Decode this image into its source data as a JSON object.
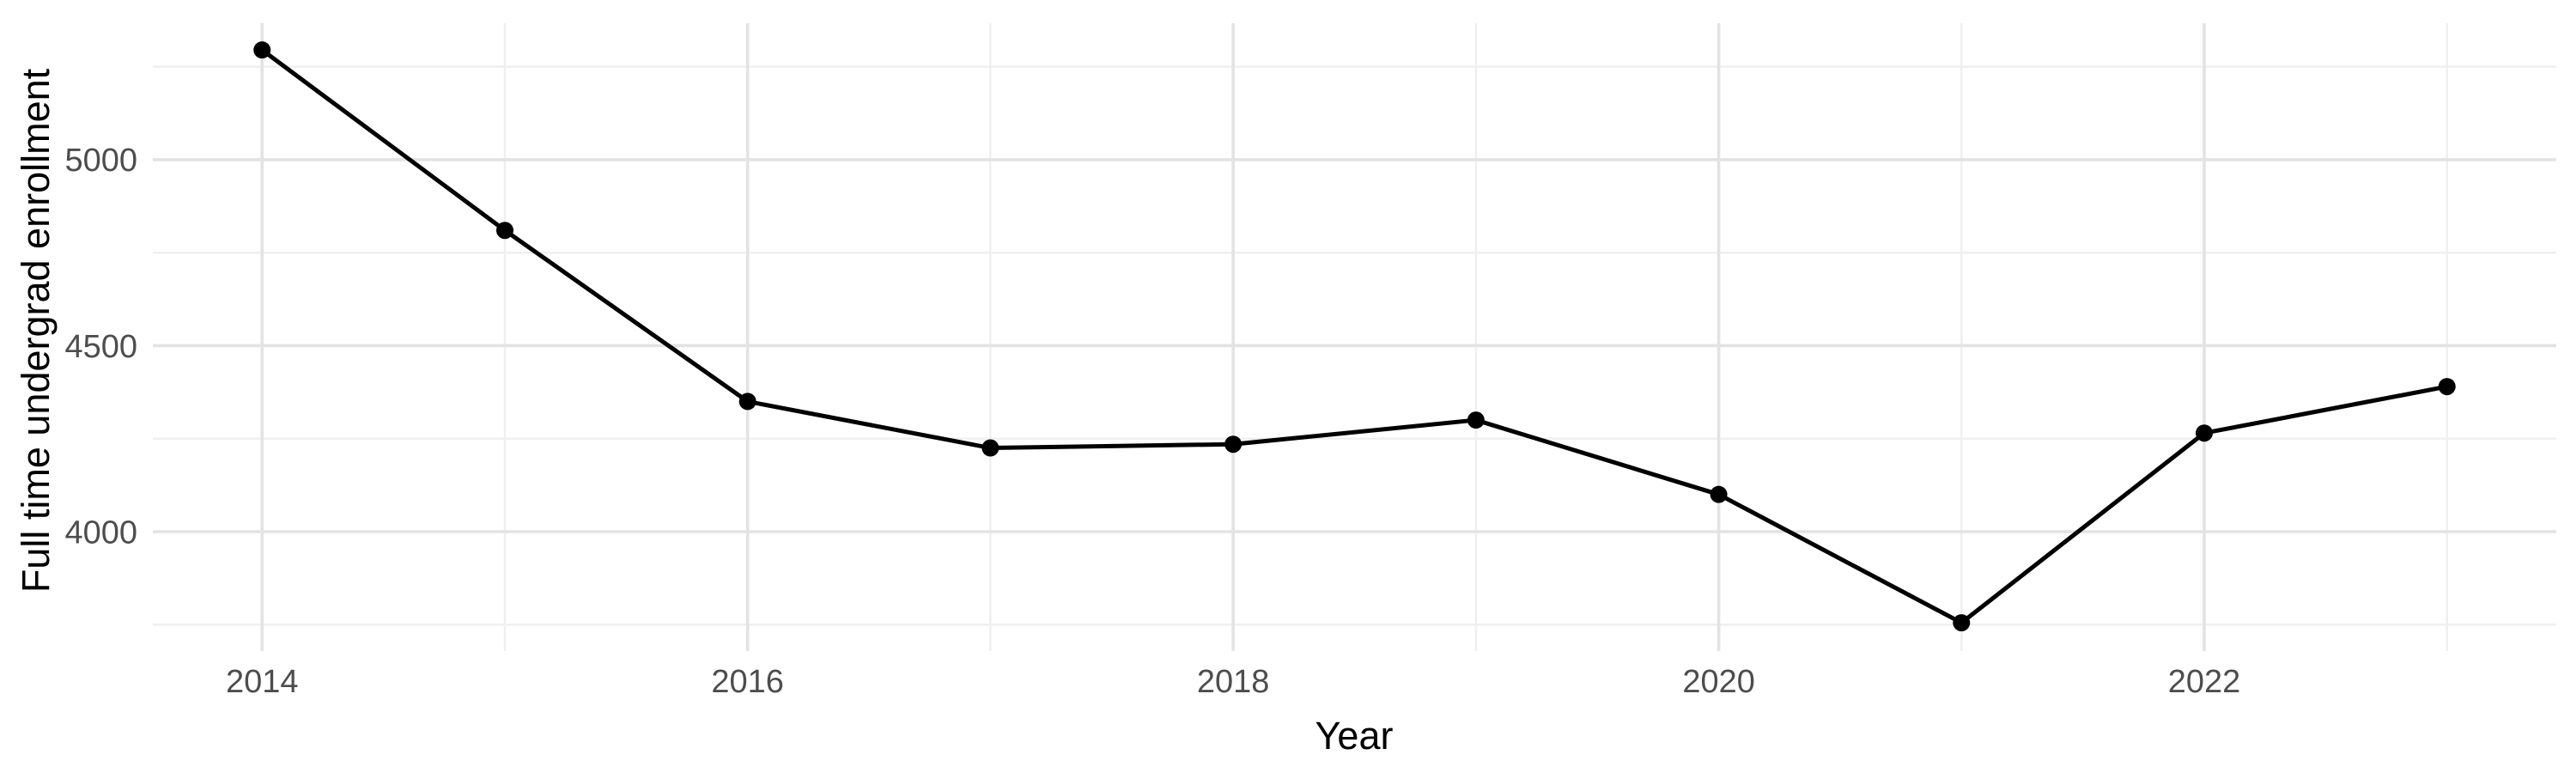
{
  "chart_data": {
    "type": "line",
    "title": "",
    "xlabel": "Year",
    "ylabel": "Full time undergrad enrollment",
    "x": [
      2014,
      2015,
      2016,
      2017,
      2018,
      2019,
      2020,
      2021,
      2022,
      2023
    ],
    "series": [
      {
        "name": "Full time undergrad enrollment",
        "values": [
          5295,
          4810,
          4350,
          4225,
          4235,
          4300,
          4100,
          3755,
          4265,
          4390
        ]
      }
    ],
    "x_ticks": [
      2014,
      2016,
      2018,
      2020,
      2022
    ],
    "x_tick_labels": [
      "2014",
      "2016",
      "2018",
      "2020",
      "2022"
    ],
    "x_minor_gridlines": [
      2015,
      2017,
      2019,
      2021,
      2023
    ],
    "y_ticks": [
      4000,
      4500,
      5000
    ],
    "y_tick_labels": [
      "4000",
      "4500",
      "5000"
    ],
    "y_minor_gridlines": [
      3750,
      4250,
      4750,
      5250
    ],
    "xlim": [
      2013.55,
      2023.45
    ],
    "ylim": [
      3679,
      5367
    ],
    "grid": true,
    "legend_position": "none",
    "colors": {
      "line": "#000000",
      "point": "#000000",
      "grid_major": "#e3e3e3",
      "grid_minor": "#efefef",
      "tick_label": "#4d4d4d",
      "axis_title": "#000000",
      "background": "#ffffff"
    }
  }
}
